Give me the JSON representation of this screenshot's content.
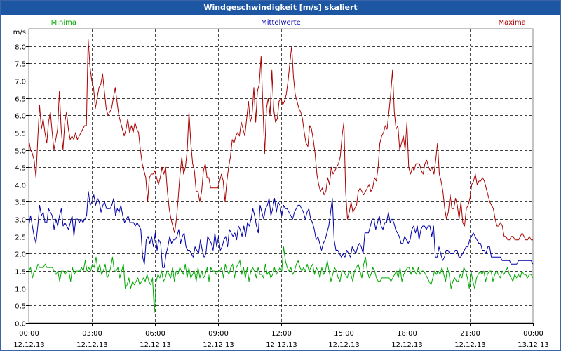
{
  "window": {
    "title": "Windgeschwindigkeit [m/s] skaliert"
  },
  "colors": {
    "background": "#ffffff",
    "title_bar": "#1d56a3",
    "min": "#00aa00",
    "avg": "#0000aa",
    "max": "#aa0000",
    "grid": "#000000",
    "text": "#000000"
  },
  "chart_data": {
    "type": "line",
    "title": "Windgeschwindigkeit [m/s] skaliert",
    "ylabel": "m/s",
    "xlabel": "",
    "ylim": [
      0,
      8.5
    ],
    "xlim": [
      0,
      24
    ],
    "grid": true,
    "y_ticks": [
      "0,0",
      "0,5",
      "1,0",
      "1,5",
      "2,0",
      "2,5",
      "3,0",
      "3,5",
      "4,0",
      "4,5",
      "5,0",
      "5,5",
      "6,0",
      "6,5",
      "7,0",
      "7,5",
      "8,0"
    ],
    "y_tick_values": [
      0,
      0.5,
      1,
      1.5,
      2,
      2.5,
      3,
      3.5,
      4,
      4.5,
      5,
      5.5,
      6,
      6.5,
      7,
      7.5,
      8
    ],
    "x_ticks": [
      {
        "time": "00:00",
        "date": "12.12.13",
        "h": 0
      },
      {
        "time": "03:00",
        "date": "12.12.13",
        "h": 3
      },
      {
        "time": "06:00",
        "date": "12.12.13",
        "h": 6
      },
      {
        "time": "09:00",
        "date": "12.12.13",
        "h": 9
      },
      {
        "time": "12:00",
        "date": "12.12.13",
        "h": 12
      },
      {
        "time": "15:00",
        "date": "12.12.13",
        "h": 15
      },
      {
        "time": "18:00",
        "date": "12.12.13",
        "h": 18
      },
      {
        "time": "21:00",
        "date": "12.12.13",
        "h": 21
      },
      {
        "time": "00:00",
        "date": "13.12.13",
        "h": 24
      }
    ],
    "series": [
      {
        "name": "Minima",
        "key": "min",
        "values": [
          1.5,
          1.6,
          1.3,
          1.5,
          1.5,
          1.7,
          1.6,
          1.6,
          1.6,
          1.7,
          1.6,
          1.6,
          1.6,
          1.6,
          1.5,
          1.4,
          1.5,
          1.2,
          1.5,
          1.5,
          1.4,
          1.5,
          1.5,
          1.2,
          1.6,
          1.4,
          1.5,
          1.5,
          1.5,
          1.6,
          1.5,
          1.8,
          1.5,
          1.6,
          1.5,
          1.7,
          1.6,
          1.9,
          1.5,
          1.7,
          1.4,
          1.5,
          1.7,
          1.3,
          1.4,
          1.6,
          1.9,
          1.5,
          1.5,
          1.6,
          1.3,
          1.5,
          1.7,
          1.0,
          1.1,
          1.3,
          1.0,
          1.2,
          1.1,
          1.2,
          1.3,
          1.1,
          1.2,
          1.3,
          1.2,
          1.4,
          1.2,
          1.1,
          1.3,
          0.3,
          1.2,
          1.4,
          1.3,
          1.5,
          1.2,
          1.3,
          1.5,
          1.4,
          1.3,
          1.6,
          1.2,
          1.5,
          1.4,
          1.6,
          1.5,
          1.4,
          1.7,
          1.3,
          1.6,
          1.3,
          1.4,
          1.5,
          1.2,
          1.6,
          1.3,
          1.5,
          1.3,
          1.4,
          1.6,
          1.2,
          1.6,
          1.5,
          1.5,
          1.4,
          1.5,
          1.5,
          1.6,
          1.3,
          1.7,
          1.5,
          1.4,
          1.6,
          1.7,
          1.3,
          1.6,
          1.7,
          1.8,
          1.4,
          1.6,
          1.3,
          1.6,
          1.2,
          1.5,
          1.6,
          1.5,
          1.3,
          1.6,
          1.4,
          1.4,
          1.3,
          1.7,
          1.4,
          1.5,
          1.3,
          1.4,
          1.6,
          1.4,
          1.5,
          1.6,
          1.5,
          2.2,
          1.8,
          1.6,
          1.5,
          1.6,
          1.4,
          1.5,
          1.7,
          1.8,
          1.6,
          1.5,
          1.6,
          1.5,
          1.7,
          1.5,
          1.6,
          1.7,
          1.4,
          1.6,
          1.5,
          1.3,
          1.6,
          1.4,
          1.5,
          1.8,
          1.5,
          1.2,
          1.4,
          1.6,
          1.5,
          1.3,
          1.2,
          1.5,
          1.5,
          1.4,
          1.3,
          1.5,
          1.4,
          1.2,
          1.5,
          1.6,
          1.7,
          1.5,
          1.3,
          1.7,
          1.9,
          1.5,
          1.3,
          1.4,
          1.6,
          1.5,
          1.3,
          1.2,
          1.2,
          1.3,
          1.3,
          1.3,
          1.3,
          1.3,
          1.2,
          1.3,
          1.4,
          1.5,
          1.3,
          1.6,
          1.2,
          1.4,
          1.5,
          1.6,
          1.6,
          1.4,
          1.6,
          1.5,
          1.4,
          1.6,
          1.4,
          1.5,
          1.5,
          1.4,
          1.3,
          1.2,
          1.1,
          1.3,
          1.5,
          1.4,
          1.5,
          1.4,
          1.6,
          1.4,
          1.2,
          1.6,
          1.4,
          1.0,
          1.2,
          1.3,
          1.2,
          1.2,
          1.4,
          1.3,
          1.6,
          1.5,
          1.3,
          1.0,
          1.5,
          1.2,
          1.0,
          1.3,
          1.4,
          1.5,
          1.4,
          1.5,
          1.2,
          1.4,
          1.5,
          1.5,
          1.2,
          1.4,
          1.5,
          1.4,
          1.3,
          1.5,
          1.4,
          1.5,
          1.6,
          1.4,
          1.3,
          1.2,
          1.4,
          1.3,
          1.4,
          1.3,
          1.5,
          1.4,
          1.4,
          1.3,
          1.4,
          1.4,
          1.3
        ]
      },
      {
        "name": "Mittelwerte",
        "key": "avg",
        "values": [
          2.8,
          3.1,
          2.8,
          2.5,
          2.3,
          2.8,
          3.4,
          3.1,
          3.2,
          2.9,
          2.9,
          3.3,
          3.2,
          3.1,
          2.7,
          3.0,
          2.8,
          3.1,
          3.3,
          2.8,
          2.9,
          2.8,
          2.7,
          2.9,
          3.1,
          2.5,
          3.0,
          3.0,
          2.9,
          3.0,
          2.9,
          3.0,
          3.1,
          3.8,
          3.4,
          3.5,
          3.7,
          3.4,
          3.6,
          3.5,
          3.2,
          3.4,
          3.5,
          3.3,
          3.3,
          3.3,
          3.4,
          3.6,
          3.1,
          3.3,
          3.2,
          3.4,
          3.1,
          2.9,
          3.0,
          3.1,
          2.9,
          2.9,
          2.9,
          2.8,
          2.9,
          2.8,
          2.7,
          1.9,
          1.7,
          2.4,
          2.5,
          2.3,
          2.5,
          2.2,
          2.6,
          2.1,
          2.4,
          2.3,
          1.6,
          1.6,
          2.0,
          2.2,
          2.5,
          2.3,
          2.4,
          2.4,
          2.5,
          2.7,
          2.3,
          2.5,
          2.6,
          2.2,
          2.1,
          2.1,
          2.0,
          1.9,
          2.2,
          2.1,
          2.0,
          2.4,
          2.1,
          1.9,
          2.0,
          2.5,
          2.4,
          2.3,
          2.1,
          2.6,
          2.2,
          2.5,
          2.1,
          2.2,
          2.4,
          2.5,
          2.2,
          2.7,
          2.6,
          2.5,
          2.6,
          2.4,
          2.8,
          2.7,
          2.5,
          2.8,
          2.5,
          2.9,
          2.8,
          3.0,
          3.3,
          3.1,
          2.8,
          2.6,
          3.4,
          3.2,
          3.0,
          3.3,
          3.4,
          3.6,
          3.1,
          3.3,
          3.6,
          3.2,
          3.5,
          3.4,
          3.1,
          3.4,
          3.3,
          3.3,
          3.2,
          3.1,
          3.0,
          3.2,
          3.3,
          3.4,
          3.4,
          3.3,
          3.2,
          3.0,
          3.2,
          3.3,
          3.0,
          2.9,
          2.7,
          2.4,
          2.5,
          2.3,
          2.1,
          2.3,
          2.4,
          2.6,
          2.8,
          3.2,
          3.6,
          2.4,
          2.1,
          2.1,
          2.0,
          1.9,
          2.0,
          1.9,
          2.1,
          2.0,
          1.9,
          2.2,
          2.1,
          2.0,
          2.2,
          2.3,
          2.2,
          2.0,
          2.6,
          2.6,
          2.6,
          2.8,
          3.0,
          3.0,
          2.7,
          2.9,
          3.1,
          2.8,
          2.7,
          2.9,
          2.9,
          3.2,
          2.9,
          3.0,
          2.9,
          2.7,
          2.6,
          2.5,
          2.3,
          2.3,
          2.5,
          2.4,
          2.3,
          2.4,
          2.7,
          2.8,
          2.6,
          2.8,
          2.4,
          2.7,
          2.8,
          2.8,
          2.7,
          2.8,
          2.8,
          2.5,
          2.8,
          1.9,
          1.9,
          2.2,
          2.0,
          1.8,
          1.9,
          2.1,
          2.1,
          2.0,
          2.0,
          2.0,
          2.1,
          2.1,
          1.9,
          1.9,
          2.0,
          2.1,
          2.2,
          2.2,
          2.4,
          2.5,
          2.6,
          2.5,
          2.4,
          2.3,
          2.3,
          2.1,
          2.1,
          2.0,
          2.2,
          2.2,
          1.9,
          1.9,
          1.9,
          1.9,
          1.9,
          1.9,
          1.8,
          1.8,
          1.8,
          1.8,
          1.8,
          1.7,
          1.7,
          1.7,
          1.7,
          1.8,
          1.8,
          1.8,
          1.8,
          1.8,
          1.8,
          1.8,
          1.8,
          1.7
        ]
      },
      {
        "name": "Maxima",
        "key": "max",
        "values": [
          5.3,
          5.0,
          4.9,
          4.7,
          4.2,
          5.3,
          6.3,
          5.6,
          5.9,
          5.5,
          5.2,
          5.8,
          6.1,
          5.5,
          5.0,
          5.3,
          5.6,
          6.7,
          5.6,
          5.0,
          5.8,
          6.1,
          5.6,
          5.3,
          5.4,
          5.3,
          5.5,
          5.3,
          5.4,
          5.5,
          5.6,
          5.7,
          5.7,
          8.2,
          7.4,
          7.0,
          6.8,
          6.2,
          6.5,
          6.8,
          6.9,
          7.2,
          6.7,
          6.2,
          6.0,
          6.1,
          6.2,
          6.5,
          6.8,
          6.4,
          6.0,
          5.8,
          5.6,
          5.4,
          5.6,
          5.9,
          5.5,
          5.7,
          5.5,
          5.8,
          5.6,
          5.5,
          5.0,
          4.6,
          4.4,
          4.2,
          3.5,
          4.2,
          4.3,
          4.3,
          4.4,
          4.2,
          4.0,
          4.2,
          4.5,
          4.3,
          4.5,
          3.8,
          3.3,
          3.0,
          2.8,
          2.6,
          3.0,
          3.6,
          4.3,
          4.8,
          4.3,
          4.5,
          5.0,
          6.1,
          5.2,
          4.6,
          4.4,
          3.8,
          3.8,
          3.5,
          3.8,
          4.4,
          4.6,
          4.2,
          4.2,
          3.9,
          3.9,
          3.9,
          3.9,
          3.9,
          4.1,
          4.3,
          4.1,
          3.5,
          4.1,
          4.5,
          4.8,
          5.3,
          5.2,
          5.4,
          5.5,
          5.4,
          5.8,
          5.6,
          5.4,
          5.9,
          6.4,
          5.8,
          6.0,
          6.8,
          5.8,
          6.7,
          6.9,
          7.7,
          6.3,
          4.9,
          6.2,
          6.5,
          6.0,
          7.3,
          6.2,
          5.8,
          5.9,
          6.4,
          6.5,
          6.3,
          6.4,
          6.6,
          7.0,
          7.5,
          8.0,
          7.1,
          6.6,
          6.4,
          6.2,
          6.1,
          5.9,
          5.5,
          5.2,
          5.1,
          5.7,
          5.6,
          5.3,
          4.9,
          4.3,
          4.0,
          3.8,
          3.9,
          3.7,
          3.8,
          4.2,
          4.0,
          4.5,
          4.3,
          4.4,
          4.5,
          4.6,
          4.8,
          5.4,
          5.8,
          3.8,
          3.0,
          3.2,
          3.5,
          3.2,
          3.3,
          3.4,
          3.8,
          3.9,
          3.8,
          3.7,
          3.8,
          3.9,
          4.0,
          3.8,
          3.9,
          4.2,
          4.1,
          4.5,
          5.2,
          5.4,
          5.5,
          5.7,
          5.6,
          6.1,
          6.6,
          7.3,
          6.1,
          5.6,
          5.7,
          5.0,
          5.2,
          5.4,
          5.0,
          5.8,
          4.5,
          4.3,
          4.5,
          4.4,
          4.6,
          4.6,
          4.6,
          4.4,
          4.3,
          4.6,
          4.7,
          4.5,
          4.4,
          4.5,
          4.3,
          4.7,
          5.2,
          4.3,
          4.1,
          3.8,
          3.3,
          3.0,
          3.2,
          3.7,
          3.3,
          3.3,
          3.6,
          3.4,
          3.0,
          3.5,
          2.9,
          2.8,
          3.3,
          3.4,
          3.6,
          4.0,
          4.1,
          4.3,
          4.0,
          4.1,
          4.1,
          4.2,
          4.1,
          3.9,
          3.7,
          3.5,
          3.4,
          3.3,
          3.0,
          2.8,
          2.8,
          2.9,
          2.8,
          2.5,
          2.5,
          2.4,
          2.4,
          2.5,
          2.5,
          2.4,
          2.4,
          2.4,
          2.5,
          2.6,
          2.5,
          2.4,
          2.4,
          2.5,
          2.4,
          2.4
        ]
      }
    ]
  }
}
